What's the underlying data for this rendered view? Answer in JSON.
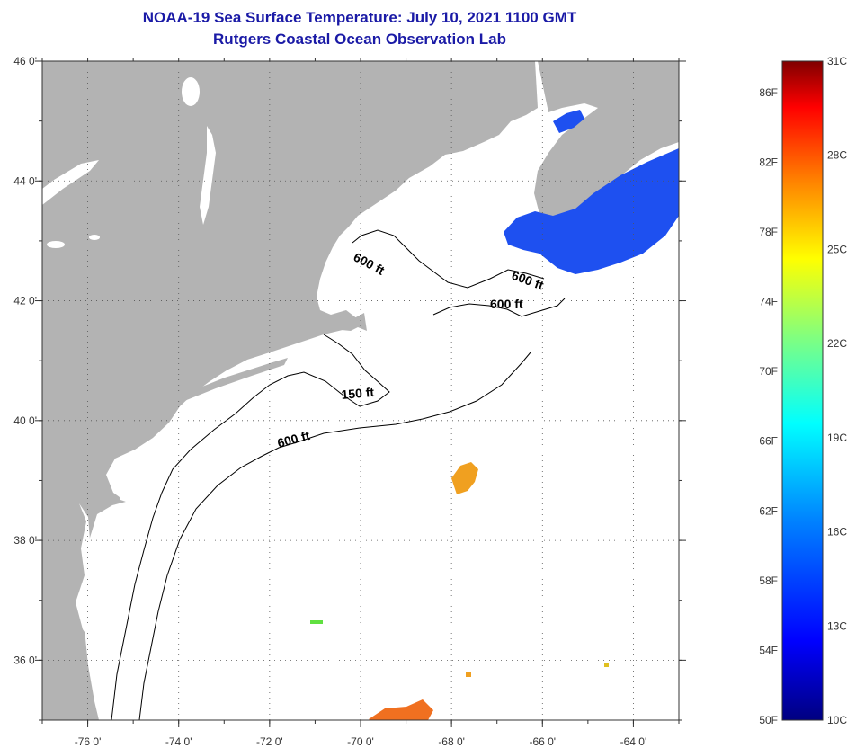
{
  "title": {
    "line1": "NOAA-19 Sea Surface Temperature:  July 10, 2021 1100 GMT",
    "line2": "Rutgers Coastal Ocean Observation Lab"
  },
  "map": {
    "lon_range": [
      -77,
      -63
    ],
    "lat_range": [
      35,
      46
    ],
    "lon_ticks": [
      {
        "value": -76,
        "label": "-76 0'"
      },
      {
        "value": -74,
        "label": "-74 0'"
      },
      {
        "value": -72,
        "label": "-72 0'"
      },
      {
        "value": -70,
        "label": "-70 0'"
      },
      {
        "value": -68,
        "label": "-68 0'"
      },
      {
        "value": -66,
        "label": "-66 0'"
      },
      {
        "value": -64,
        "label": "-64 0'"
      }
    ],
    "lat_ticks": [
      {
        "value": 46,
        "label": "46 0'"
      },
      {
        "value": 44,
        "label": "44 0'"
      },
      {
        "value": 42,
        "label": "42 0'"
      },
      {
        "value": 40,
        "label": "40 0'"
      },
      {
        "value": 38,
        "label": "38 0'"
      },
      {
        "value": 36,
        "label": "36 0'"
      }
    ],
    "contour_labels": [
      "600 ft",
      "600 ft",
      "600 ft",
      "150 ft",
      "600 ft"
    ],
    "colors": {
      "land": "#b3b3b3",
      "ocean": "#ffffff",
      "grid": "#555555",
      "contour": "#000000"
    }
  },
  "colorbar": {
    "min_c": 10,
    "max_c": 31,
    "fahrenheit_labels": [
      "86F",
      "82F",
      "78F",
      "74F",
      "70F",
      "66F",
      "62F",
      "58F",
      "54F",
      "50F"
    ],
    "celsius_labels": [
      "31C",
      "28C",
      "25C",
      "22C",
      "19C",
      "16C",
      "13C",
      "10C"
    ],
    "gradient_stops": [
      "#000080",
      "#0000ff",
      "#0080ff",
      "#00ffff",
      "#80ff80",
      "#ffff00",
      "#ff8000",
      "#ff0000",
      "#800000"
    ]
  }
}
